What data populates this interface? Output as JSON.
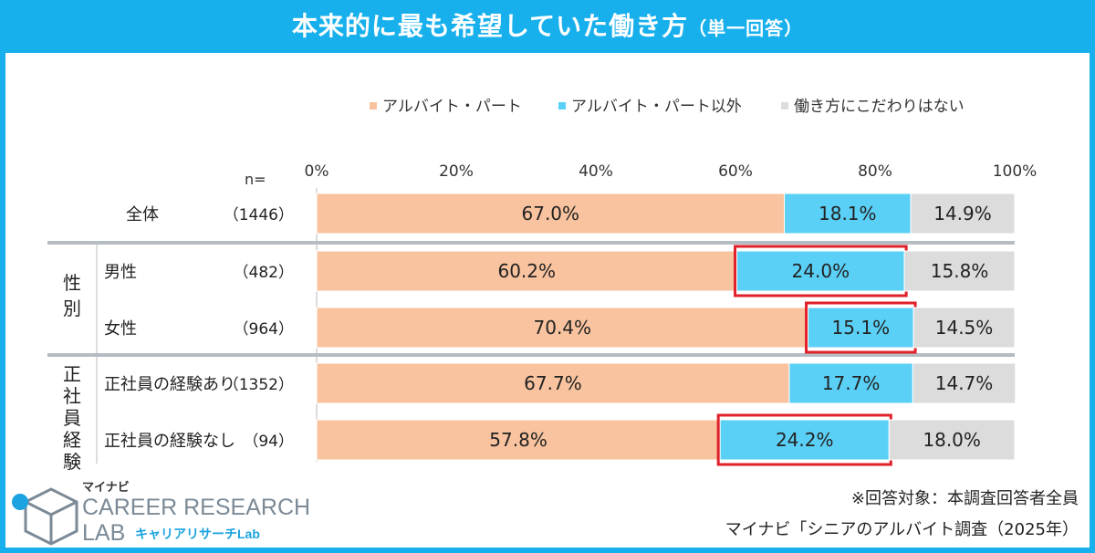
{
  "title": {
    "main": "本来的に最も希望していた働き方",
    "sub": "（単一回答）"
  },
  "n_label": "n=",
  "chart_data": {
    "type": "bar",
    "orientation": "horizontal-stacked-100",
    "xlim": [
      0,
      100
    ],
    "ticks": [
      "0%",
      "20%",
      "40%",
      "60%",
      "80%",
      "100%"
    ],
    "tick_values": [
      0,
      20,
      40,
      60,
      80,
      100
    ],
    "legend_position": "top",
    "series": [
      {
        "name": "アルバイト・パート",
        "color": "#f8c39e"
      },
      {
        "name": "アルバイト・パート以外",
        "color": "#5bd0f6"
      },
      {
        "name": "働き方にこだわりはない",
        "color": "#dcdcdc"
      }
    ],
    "rows": [
      {
        "group": "",
        "label": "全体",
        "n": "（1446）",
        "values": [
          67.0,
          18.1,
          14.9
        ],
        "labels": [
          "67.0%",
          "18.1%",
          "14.9%"
        ],
        "highlight": false
      },
      {
        "group": "性別",
        "label": "男性",
        "n": "（482）",
        "values": [
          60.2,
          24.0,
          15.8
        ],
        "labels": [
          "60.2%",
          "24.0%",
          "15.8%"
        ],
        "highlight": true
      },
      {
        "group": "性別",
        "label": "女性",
        "n": "（964）",
        "values": [
          70.4,
          15.1,
          14.5
        ],
        "labels": [
          "70.4%",
          "15.1%",
          "14.5%"
        ],
        "highlight": true
      },
      {
        "group": "正社員経験",
        "label": "正社員の経験あり",
        "n": "（1352）",
        "values": [
          67.7,
          17.7,
          14.7
        ],
        "labels": [
          "67.7%",
          "17.7%",
          "14.7%"
        ],
        "highlight": false
      },
      {
        "group": "正社員経験",
        "label": "正社員の経験なし",
        "n": "（94）",
        "values": [
          57.8,
          24.2,
          18.0
        ],
        "labels": [
          "57.8%",
          "24.2%",
          "18.0%"
        ],
        "highlight": true
      }
    ],
    "groups": [
      {
        "name": "性別",
        "chars": [
          "性",
          "別"
        ]
      },
      {
        "name": "正社員経験",
        "chars": [
          "正",
          "社",
          "員",
          "経",
          "験"
        ]
      }
    ],
    "highlight_color": "#e0202a"
  },
  "notes": {
    "target": "※回答対象：本調査回答者全員",
    "source": "マイナビ「シニアのアルバイト調査（2025年）"
  },
  "logo": {
    "brand": "マイナビ",
    "line1": "CAREER RESEARCH",
    "line2": "LAB",
    "katakana": "キャリアリサーチLab"
  },
  "colors": {
    "accent": "#17b0ec",
    "logo_text": "#7b8a96",
    "logo_accent": "#1aa3e0"
  }
}
